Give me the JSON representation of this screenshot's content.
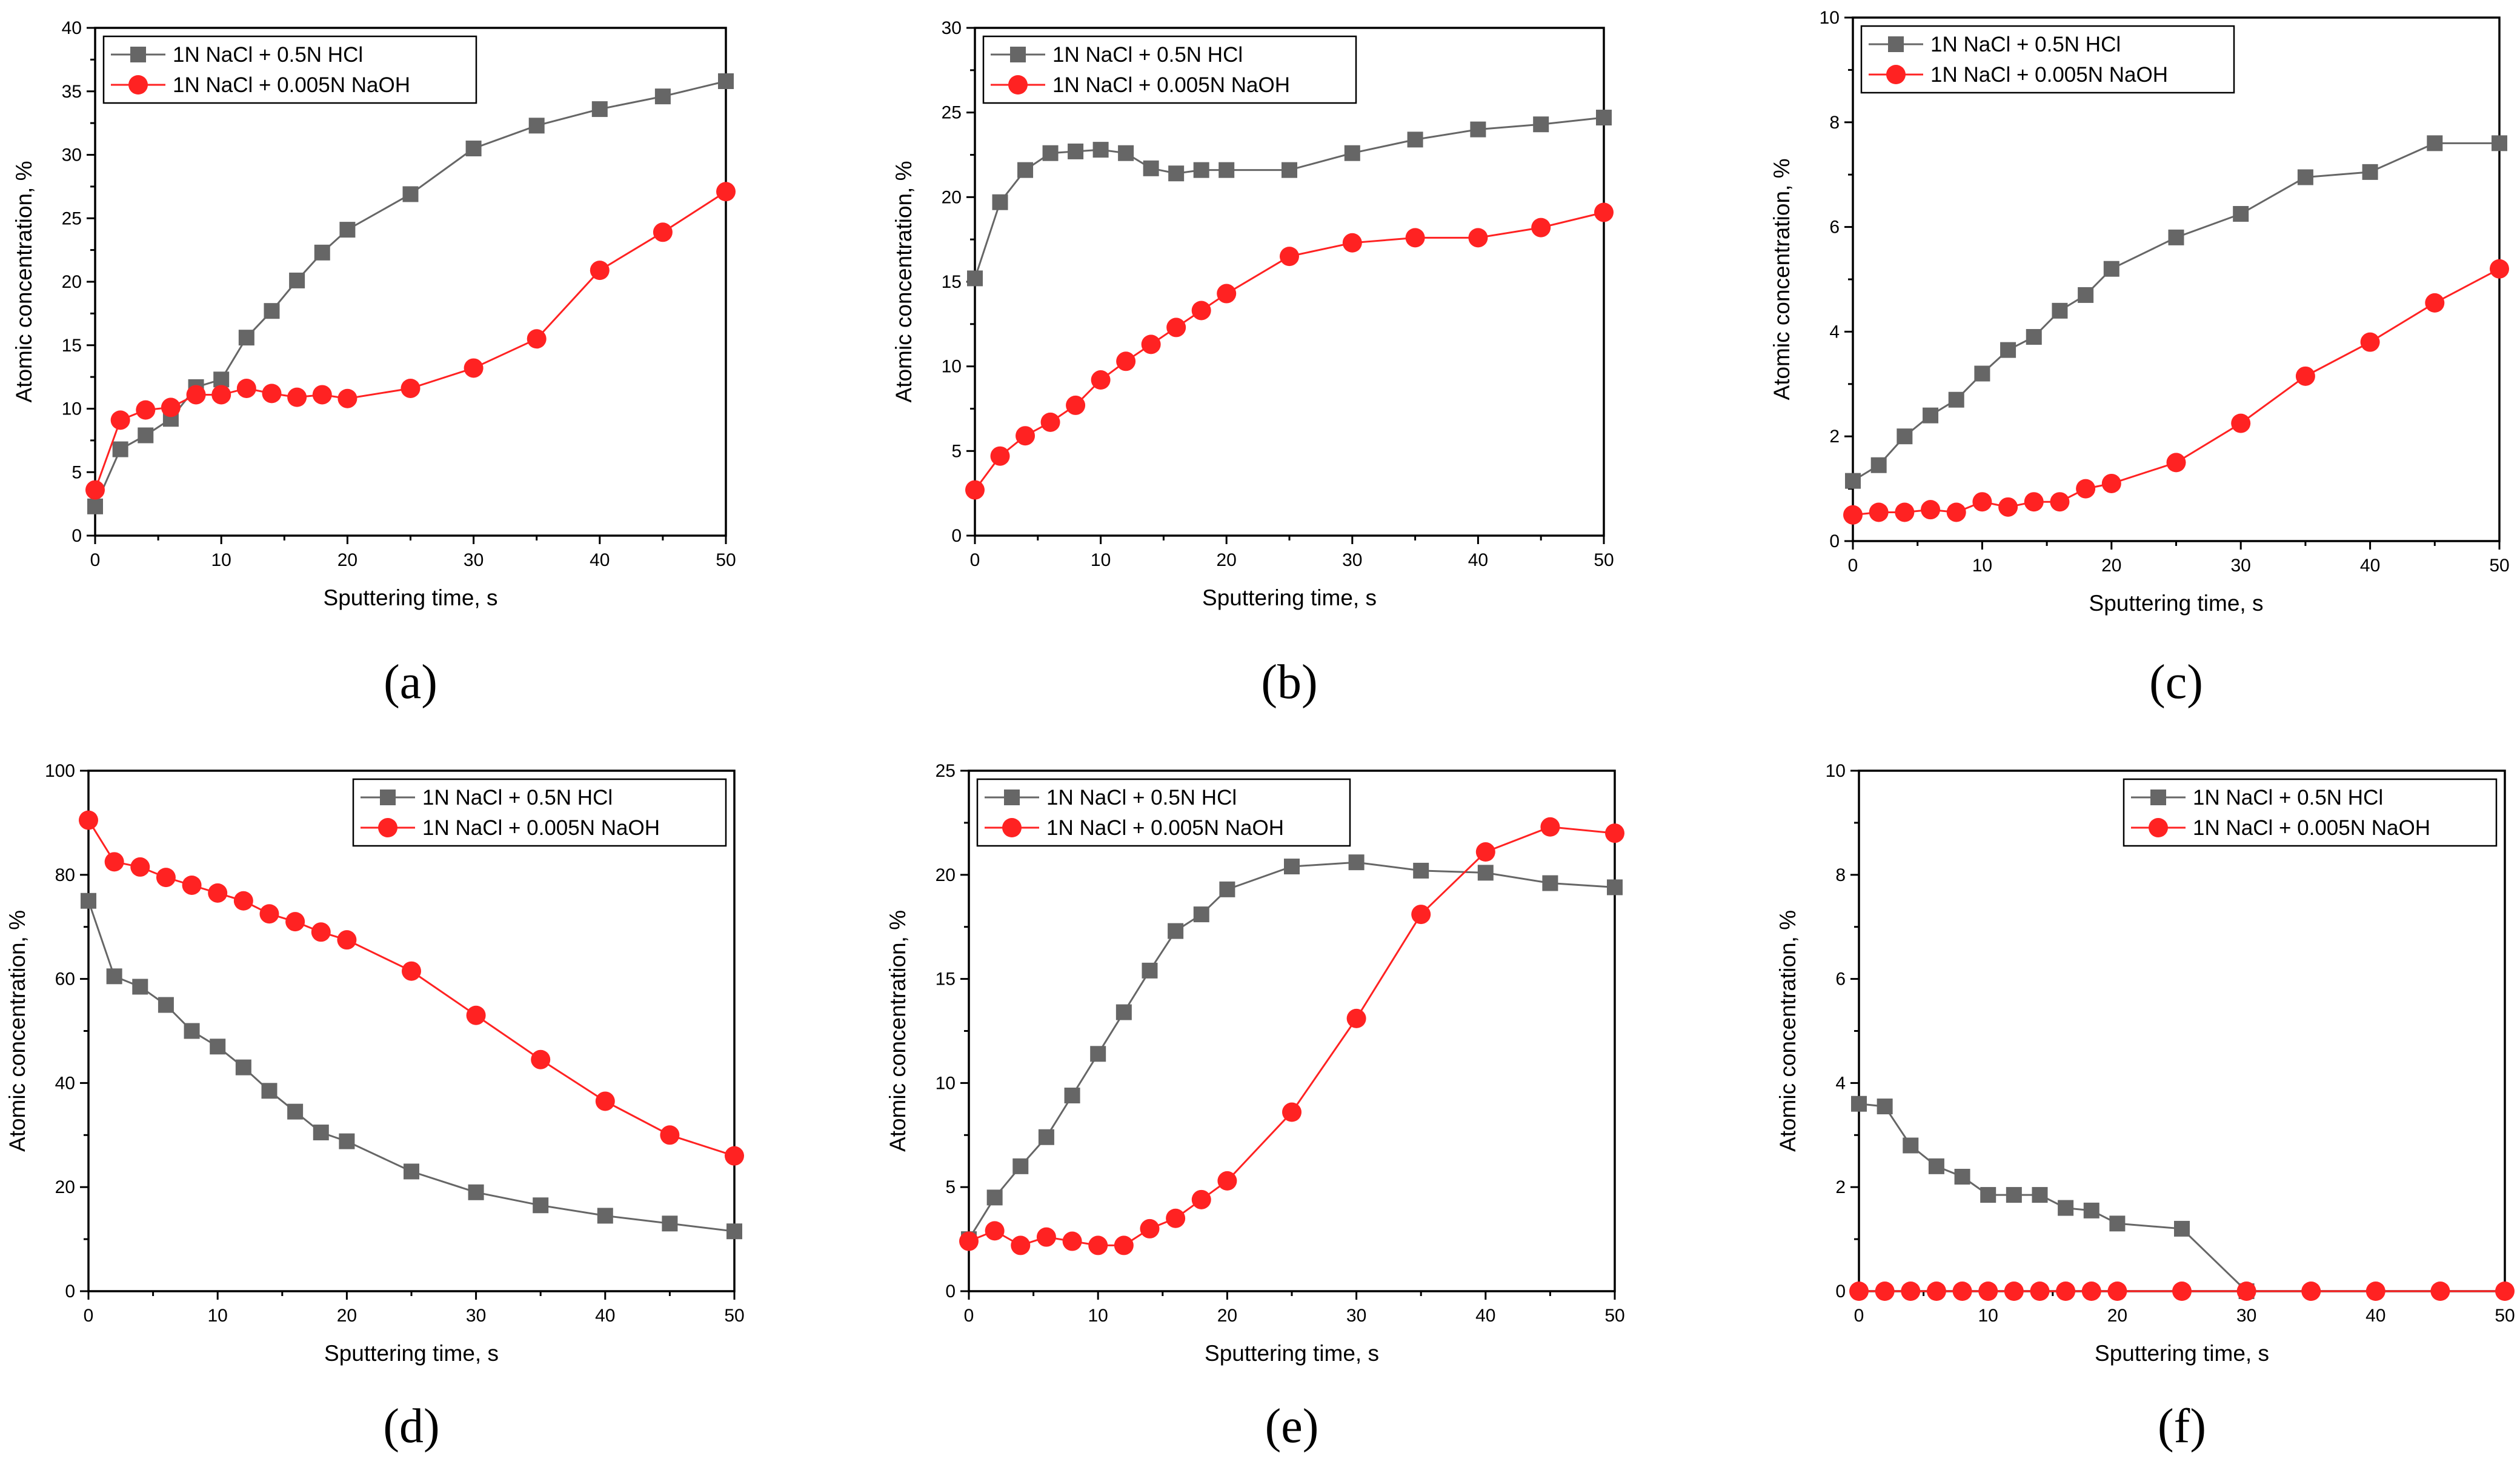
{
  "chart_data": [
    {
      "panel": "a",
      "type": "line",
      "xlabel": "Sputtering time, s",
      "ylabel": "Atomic concentration, %",
      "xlim": [
        0,
        50
      ],
      "ylim": [
        0,
        40
      ],
      "xticks": [
        0,
        10,
        20,
        30,
        40,
        50
      ],
      "yticks": [
        0,
        5,
        10,
        15,
        20,
        25,
        30,
        35,
        40
      ],
      "legend_position": "top-left",
      "series": [
        {
          "name": "1N NaCl + 0.5N HCl",
          "marker": "square",
          "color": "#666666",
          "x": [
            0,
            2,
            4,
            6,
            8,
            10,
            12,
            14,
            16,
            18,
            20,
            25,
            30,
            35,
            40,
            45,
            50
          ],
          "y": [
            2.3,
            6.8,
            7.9,
            9.2,
            11.7,
            12.3,
            15.6,
            17.7,
            20.1,
            22.3,
            24.1,
            26.9,
            30.5,
            32.3,
            33.6,
            34.6,
            35.8
          ]
        },
        {
          "name": "1N NaCl + 0.005N NaOH",
          "marker": "circle",
          "color": "#ff2222",
          "x": [
            0,
            2,
            4,
            6,
            8,
            10,
            12,
            14,
            16,
            18,
            20,
            25,
            30,
            35,
            40,
            45,
            50
          ],
          "y": [
            3.6,
            9.1,
            9.9,
            10.1,
            11.1,
            11.1,
            11.6,
            11.2,
            10.9,
            11.1,
            10.8,
            11.6,
            13.2,
            15.5,
            20.9,
            23.9,
            27.1
          ]
        }
      ]
    },
    {
      "panel": "b",
      "type": "line",
      "xlabel": "Sputtering time, s",
      "ylabel": "Atomic concentration, %",
      "xlim": [
        0,
        50
      ],
      "ylim": [
        0,
        30
      ],
      "xticks": [
        0,
        10,
        20,
        30,
        40,
        50
      ],
      "yticks": [
        0,
        5,
        10,
        15,
        20,
        25,
        30
      ],
      "legend_position": "top-left",
      "series": [
        {
          "name": "1N NaCl + 0.5N HCl",
          "marker": "square",
          "color": "#666666",
          "x": [
            0,
            2,
            4,
            6,
            8,
            10,
            12,
            14,
            16,
            18,
            20,
            25,
            30,
            35,
            40,
            45,
            50
          ],
          "y": [
            15.2,
            19.7,
            21.6,
            22.6,
            22.7,
            22.8,
            22.6,
            21.7,
            21.4,
            21.6,
            21.6,
            21.6,
            22.6,
            23.4,
            24.0,
            24.3,
            24.7
          ]
        },
        {
          "name": "1N NaCl + 0.005N NaOH",
          "marker": "circle",
          "color": "#ff2222",
          "x": [
            0,
            2,
            4,
            6,
            8,
            10,
            12,
            14,
            16,
            18,
            20,
            25,
            30,
            35,
            40,
            45,
            50
          ],
          "y": [
            2.7,
            4.7,
            5.9,
            6.7,
            7.7,
            9.2,
            10.3,
            11.3,
            12.3,
            13.3,
            14.3,
            16.5,
            17.3,
            17.6,
            17.6,
            18.2,
            19.1
          ]
        }
      ]
    },
    {
      "panel": "c",
      "type": "line",
      "xlabel": "Sputtering time, s",
      "ylabel": "Atomic concentration, %",
      "xlim": [
        0,
        50
      ],
      "ylim": [
        0,
        10
      ],
      "xticks": [
        0,
        10,
        20,
        30,
        40,
        50
      ],
      "yticks": [
        0,
        2,
        4,
        6,
        8,
        10
      ],
      "legend_position": "top-left",
      "series": [
        {
          "name": "1N NaCl + 0.5N HCl",
          "marker": "square",
          "color": "#666666",
          "x": [
            0,
            2,
            4,
            6,
            8,
            10,
            12,
            14,
            16,
            18,
            20,
            25,
            30,
            35,
            40,
            45,
            50
          ],
          "y": [
            1.15,
            1.45,
            2.0,
            2.4,
            2.7,
            3.2,
            3.65,
            3.9,
            4.4,
            4.7,
            5.2,
            5.8,
            6.25,
            6.95,
            7.05,
            7.6,
            7.6
          ]
        },
        {
          "name": "1N NaCl + 0.005N NaOH",
          "marker": "circle",
          "color": "#ff2222",
          "x": [
            0,
            2,
            4,
            6,
            8,
            10,
            12,
            14,
            16,
            18,
            20,
            25,
            30,
            35,
            40,
            45,
            50
          ],
          "y": [
            0.5,
            0.55,
            0.55,
            0.6,
            0.55,
            0.75,
            0.65,
            0.75,
            0.75,
            1.0,
            1.1,
            1.5,
            2.25,
            3.15,
            3.8,
            4.55,
            5.2
          ]
        }
      ]
    },
    {
      "panel": "d",
      "type": "line",
      "xlabel": "Sputtering time, s",
      "ylabel": "Atomic concentration, %",
      "xlim": [
        0,
        50
      ],
      "ylim": [
        0,
        100
      ],
      "xticks": [
        0,
        10,
        20,
        30,
        40,
        50
      ],
      "yticks": [
        0,
        20,
        40,
        60,
        80,
        100
      ],
      "legend_position": "top-right",
      "series": [
        {
          "name": "1N NaCl + 0.5N HCl",
          "marker": "square",
          "color": "#666666",
          "x": [
            0,
            2,
            4,
            6,
            8,
            10,
            12,
            14,
            16,
            18,
            20,
            25,
            30,
            35,
            40,
            45,
            50
          ],
          "y": [
            75,
            60.5,
            58.5,
            55,
            50,
            47,
            43,
            38.5,
            34.5,
            30.5,
            28.8,
            23,
            19,
            16.5,
            14.5,
            13,
            11.5
          ]
        },
        {
          "name": "1N NaCl + 0.005N NaOH",
          "marker": "circle",
          "color": "#ff2222",
          "x": [
            0,
            2,
            4,
            6,
            8,
            10,
            12,
            14,
            16,
            18,
            20,
            25,
            30,
            35,
            40,
            45,
            50
          ],
          "y": [
            90.5,
            82.5,
            81.5,
            79.5,
            78,
            76.5,
            75,
            72.5,
            71,
            69,
            67.5,
            61.5,
            53,
            44.5,
            36.5,
            30,
            26
          ]
        }
      ]
    },
    {
      "panel": "e",
      "type": "line",
      "xlabel": "Sputtering time, s",
      "ylabel": "Atomic concentration, %",
      "xlim": [
        0,
        50
      ],
      "ylim": [
        0,
        25
      ],
      "xticks": [
        0,
        10,
        20,
        30,
        40,
        50
      ],
      "yticks": [
        0,
        5,
        10,
        15,
        20,
        25
      ],
      "legend_position": "top-left",
      "series": [
        {
          "name": "1N NaCl + 0.5N HCl",
          "marker": "square",
          "color": "#666666",
          "x": [
            0,
            2,
            4,
            6,
            8,
            10,
            12,
            14,
            16,
            18,
            20,
            25,
            30,
            35,
            40,
            45,
            50
          ],
          "y": [
            2.5,
            4.5,
            6.0,
            7.4,
            9.4,
            11.4,
            13.4,
            15.4,
            17.3,
            18.1,
            19.3,
            20.4,
            20.6,
            20.2,
            20.1,
            19.6,
            19.4
          ]
        },
        {
          "name": "1N NaCl + 0.005N NaOH",
          "marker": "circle",
          "color": "#ff2222",
          "x": [
            0,
            2,
            4,
            6,
            8,
            10,
            12,
            14,
            16,
            18,
            20,
            25,
            30,
            35,
            40,
            45,
            50
          ],
          "y": [
            2.4,
            2.9,
            2.2,
            2.6,
            2.4,
            2.2,
            2.2,
            3.0,
            3.5,
            4.4,
            5.3,
            8.6,
            13.1,
            18.1,
            21.1,
            22.3,
            22.0
          ]
        }
      ]
    },
    {
      "panel": "f",
      "type": "line",
      "xlabel": "Sputtering time, s",
      "ylabel": "Atomic concentration, %",
      "xlim": [
        0,
        50
      ],
      "ylim": [
        0,
        10
      ],
      "xticks": [
        0,
        10,
        20,
        30,
        40,
        50
      ],
      "yticks": [
        0,
        2,
        4,
        6,
        8,
        10
      ],
      "legend_position": "top-right",
      "series": [
        {
          "name": "1N NaCl + 0.5N HCl",
          "marker": "square",
          "color": "#666666",
          "x": [
            0,
            2,
            4,
            6,
            8,
            10,
            12,
            14,
            16,
            18,
            20,
            25,
            30
          ],
          "y": [
            3.6,
            3.55,
            2.8,
            2.4,
            2.2,
            1.85,
            1.85,
            1.85,
            1.6,
            1.55,
            1.3,
            1.2,
            0
          ]
        },
        {
          "name": "1N NaCl + 0.005N NaOH",
          "marker": "circle",
          "color": "#ff2222",
          "x": [
            0,
            2,
            4,
            6,
            8,
            10,
            12,
            14,
            16,
            18,
            20,
            25,
            30,
            35,
            40,
            45,
            50
          ],
          "y": [
            0,
            0,
            0,
            0,
            0,
            0,
            0,
            0,
            0,
            0,
            0,
            0,
            0,
            0,
            0,
            0,
            0
          ]
        }
      ]
    }
  ]
}
